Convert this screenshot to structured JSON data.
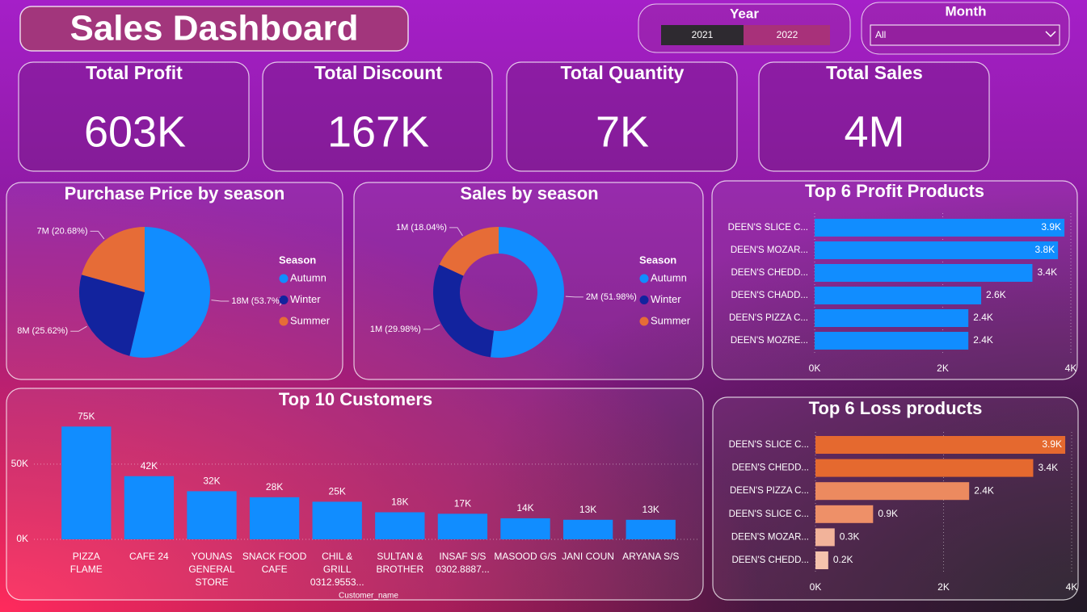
{
  "header": {
    "title": "Sales Dashboard"
  },
  "slicers": {
    "year": {
      "label": "Year",
      "options": [
        "2021",
        "2022"
      ]
    },
    "month": {
      "label": "Month",
      "value": "All"
    }
  },
  "kpis": [
    {
      "label": "Total Profit",
      "value": "603K"
    },
    {
      "label": "Total Discount",
      "value": "167K"
    },
    {
      "label": "Total Quantity",
      "value": "7K"
    },
    {
      "label": "Total Sales",
      "value": "4M"
    }
  ],
  "chart_data": [
    {
      "type": "pie",
      "title": "Purchase Price by season",
      "legend_title": "Season",
      "categories": [
        "Autumn",
        "Winter",
        "Summer"
      ],
      "values": [
        53.7,
        25.62,
        20.68
      ],
      "value_labels": [
        "18M (53.7%)",
        "8M (25.62%)",
        "7M (20.68%)"
      ],
      "colors": [
        "#118dff",
        "#12239e",
        "#e66c37"
      ]
    },
    {
      "type": "donut",
      "title": "Sales by season",
      "legend_title": "Season",
      "categories": [
        "Autumn",
        "Winter",
        "Summer"
      ],
      "values": [
        51.98,
        29.98,
        18.04
      ],
      "value_labels": [
        "2M (51.98%)",
        "1M (29.98%)",
        "1M (18.04%)"
      ],
      "colors": [
        "#118dff",
        "#12239e",
        "#e66c37"
      ]
    },
    {
      "type": "barh",
      "title": "Top 6 Profit Products",
      "categories": [
        "DEEN'S SLICE C...",
        "DEEN'S MOZAR...",
        "DEEN'S CHEDD...",
        "DEEN'S CHADD...",
        "DEEN'S PIZZA C...",
        "DEEN'S MOZRE..."
      ],
      "values": [
        3.9,
        3.8,
        3.4,
        2.6,
        2.4,
        2.4
      ],
      "value_labels": [
        "3.9K",
        "3.8K",
        "3.4K",
        "2.6K",
        "2.4K",
        "2.4K"
      ],
      "color": "#118dff",
      "xlim": [
        0,
        4
      ],
      "xticks": [
        {
          "value": 0,
          "label": "0K"
        },
        {
          "value": 2,
          "label": "2K"
        },
        {
          "value": 4,
          "label": "4K"
        }
      ],
      "grid": true
    },
    {
      "type": "barh",
      "title": "Top 6 Loss products",
      "categories": [
        "DEEN'S SLICE C...",
        "DEEN'S CHEDD...",
        "DEEN'S PIZZA C...",
        "DEEN'S SLICE C...",
        "DEEN'S MOZAR...",
        "DEEN'S CHEDD..."
      ],
      "values": [
        3.9,
        3.4,
        2.4,
        0.9,
        0.3,
        0.2
      ],
      "value_labels": [
        "3.9K",
        "3.4K",
        "2.4K",
        "0.9K",
        "0.3K",
        "0.2K"
      ],
      "colors": [
        "#e5692f",
        "#e5692f",
        "#ec8a5f",
        "#ee9068",
        "#f2b39a",
        "#f5c3ad"
      ],
      "xlim": [
        0,
        4
      ],
      "xticks": [
        {
          "value": 0,
          "label": "0K"
        },
        {
          "value": 2,
          "label": "2K"
        },
        {
          "value": 4,
          "label": "4K"
        }
      ],
      "grid": true
    },
    {
      "type": "bar",
      "title": "Top 10 Customers",
      "x_label": "Customer_name",
      "categories": [
        "PIZZA FLAME",
        "CAFE 24",
        "YOUNAS GENERAL STORE",
        "SNACK FOOD CAFE",
        "CHIL & GRILL 0312.9553...",
        "SULTAN & BROTHER",
        "INSAF S/S 0302.8887...",
        "MASOOD G/S",
        "JANI COUN",
        "ARYANA S/S"
      ],
      "values": [
        75,
        42,
        32,
        28,
        25,
        18,
        17,
        14,
        13,
        13
      ],
      "value_labels": [
        "75K",
        "42K",
        "32K",
        "28K",
        "25K",
        "18K",
        "17K",
        "14K",
        "13K",
        "13K"
      ],
      "color": "#118dff",
      "ylim": [
        0,
        80
      ],
      "yticks": [
        {
          "value": 0,
          "label": "0K"
        },
        {
          "value": 50,
          "label": "50K"
        }
      ],
      "grid": true
    }
  ]
}
